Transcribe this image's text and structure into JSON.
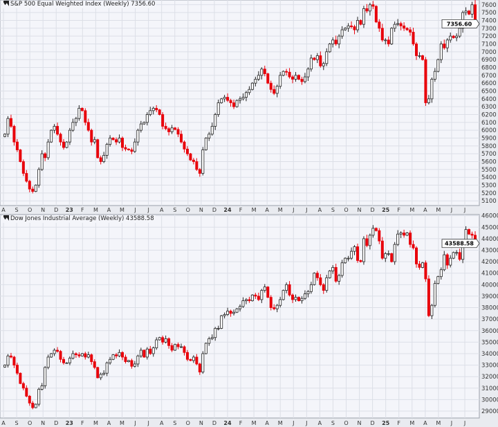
{
  "chart_data": [
    {
      "type": "candlestick",
      "title": "S&P 500 Equal Weighted Index (Weekly) 7356.60",
      "last_value_label": "7356.60",
      "ylim": [
        5040,
        7660
      ],
      "y_ticks": [
        5100,
        5200,
        5300,
        5400,
        5500,
        5600,
        5700,
        5800,
        5900,
        6000,
        6100,
        6200,
        6300,
        6400,
        6500,
        6600,
        6700,
        6800,
        6900,
        7000,
        7100,
        7200,
        7300,
        7400,
        7500,
        7600
      ],
      "x_tick_labels": [
        "A",
        "S",
        "O",
        "N",
        "D",
        "23",
        "F",
        "M",
        "A",
        "M",
        "J",
        "J",
        "A",
        "S",
        "O",
        "N",
        "D",
        "24",
        "F",
        "M",
        "A",
        "M",
        "J",
        "J",
        "A",
        "S",
        "O",
        "N",
        "D",
        "25",
        "F",
        "M",
        "A",
        "M",
        "J",
        "J"
      ],
      "grid": true,
      "colors": {
        "up": "#222222",
        "down": "#e8000b"
      },
      "weekly_close": [
        5950,
        6150,
        6050,
        5850,
        5750,
        5600,
        5450,
        5350,
        5250,
        5220,
        5300,
        5500,
        5700,
        5650,
        5850,
        6000,
        6050,
        5950,
        5850,
        5780,
        5850,
        6000,
        6100,
        6150,
        6280,
        6250,
        6100,
        6000,
        5850,
        5880,
        5650,
        5600,
        5680,
        5820,
        5900,
        5880,
        5850,
        5900,
        5780,
        5760,
        5750,
        5730,
        5850,
        6000,
        6080,
        6100,
        6200,
        6250,
        6280,
        6260,
        6200,
        6050,
        6020,
        5980,
        6030,
        6010,
        5950,
        5850,
        5760,
        5700,
        5620,
        5600,
        5500,
        5450,
        5750,
        5900,
        5950,
        6050,
        6200,
        6350,
        6400,
        6420,
        6380,
        6350,
        6300,
        6380,
        6400,
        6420,
        6480,
        6520,
        6600,
        6650,
        6700,
        6780,
        6720,
        6600,
        6520,
        6470,
        6560,
        6700,
        6750,
        6740,
        6680,
        6650,
        6700,
        6650,
        6620,
        6680,
        6780,
        6920,
        6900,
        6950,
        6820,
        6850,
        7000,
        7100,
        7150,
        7100,
        7200,
        7280,
        7300,
        7330,
        7320,
        7280,
        7400,
        7350,
        7550,
        7520,
        7600,
        7580,
        7380,
        7300,
        7150,
        7150,
        7100,
        7300,
        7350,
        7360,
        7330,
        7300,
        7280,
        7250,
        7100,
        6950,
        6950,
        6900,
        6350,
        6400,
        6650,
        6750,
        6900,
        7100,
        7050,
        7150,
        7200,
        7180,
        7200,
        7300,
        7500,
        7520,
        7480,
        7600,
        7356.6
      ]
    },
    {
      "type": "candlestick",
      "title": "Dow Jones Industrial Average (Weekly) 43588.58",
      "last_value_label": "43588.58",
      "ylim": [
        28400,
        46100
      ],
      "y_ticks": [
        29000,
        30000,
        31000,
        32000,
        33000,
        34000,
        35000,
        36000,
        37000,
        38000,
        39000,
        40000,
        41000,
        42000,
        43000,
        44000,
        45000,
        46000
      ],
      "x_tick_labels": [
        "A",
        "S",
        "O",
        "N",
        "D",
        "23",
        "F",
        "M",
        "A",
        "M",
        "J",
        "J",
        "A",
        "S",
        "O",
        "N",
        "D",
        "24",
        "F",
        "M",
        "A",
        "M",
        "J",
        "J",
        "A",
        "S",
        "O",
        "N",
        "D",
        "25",
        "F",
        "M",
        "A",
        "M",
        "J",
        "J"
      ],
      "grid": true,
      "colors": {
        "up": "#222222",
        "down": "#e8000b"
      },
      "weekly_close": [
        33000,
        33800,
        33700,
        33000,
        32300,
        31400,
        31000,
        30300,
        29700,
        29300,
        29600,
        30900,
        31200,
        32800,
        33700,
        34000,
        34300,
        34200,
        33500,
        33200,
        33200,
        33600,
        34000,
        33900,
        33800,
        34000,
        33700,
        33900,
        33300,
        32800,
        31900,
        32200,
        32300,
        33200,
        33500,
        33900,
        33800,
        34100,
        33700,
        33300,
        33400,
        32900,
        33100,
        33800,
        34300,
        33700,
        34400,
        34000,
        34500,
        35200,
        35400,
        35000,
        35300,
        34700,
        34300,
        34800,
        34600,
        34600,
        34100,
        33500,
        33400,
        33700,
        33100,
        32400,
        34000,
        34900,
        35300,
        35400,
        36200,
        36200,
        37300,
        37400,
        37700,
        37500,
        37600,
        37900,
        38100,
        38600,
        38700,
        38600,
        39100,
        39000,
        38700,
        39500,
        39800,
        38900,
        38000,
        37900,
        38200,
        38700,
        39500,
        40000,
        39100,
        38700,
        38900,
        38600,
        38800,
        39200,
        39400,
        40000,
        41000,
        40600,
        40000,
        39500,
        40600,
        41200,
        41500,
        40300,
        40800,
        41900,
        42300,
        42300,
        42900,
        43300,
        42100,
        42000,
        44000,
        43400,
        44300,
        44900,
        44700,
        43800,
        42300,
        42700,
        42700,
        42000,
        43500,
        44400,
        44500,
        44300,
        44500,
        43500,
        43200,
        41800,
        41500,
        41900,
        40500,
        37300,
        38200,
        40100,
        40700,
        41300,
        42600,
        41700,
        42300,
        42800,
        42800,
        42200,
        43800,
        44800,
        44400,
        44300,
        43588.58
      ]
    }
  ]
}
